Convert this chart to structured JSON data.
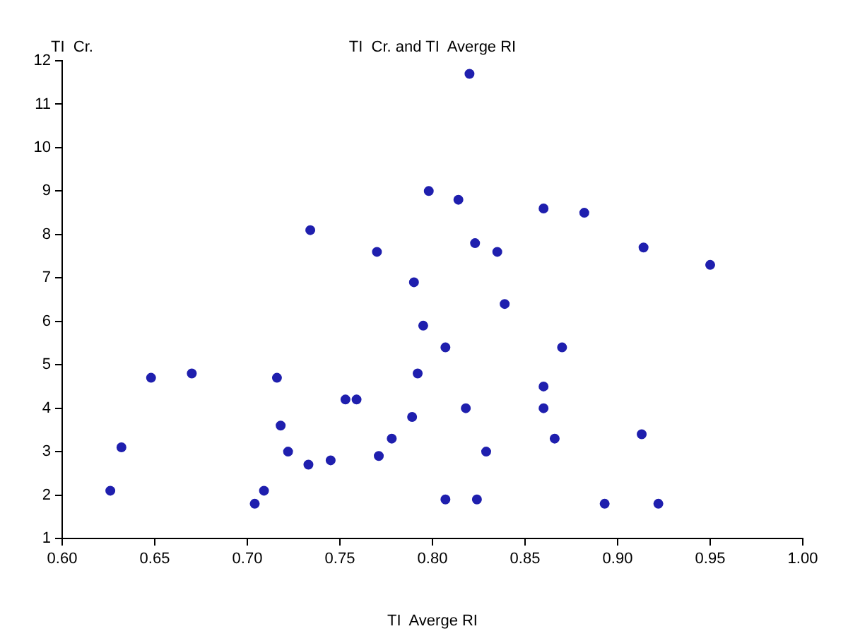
{
  "chart_data": {
    "type": "scatter",
    "title": "TI  Cr. and TI  Averge RI",
    "xlabel": "TI  Averge RI",
    "ylabel": "TI  Cr.",
    "marker": "circle",
    "grid": false,
    "legend": false,
    "xlim": [
      0.6,
      1.0
    ],
    "xticks": [
      {
        "value": 0.6,
        "label": "0.60"
      },
      {
        "value": 0.65,
        "label": "0.65"
      },
      {
        "value": 0.7,
        "label": "0.70"
      },
      {
        "value": 0.75,
        "label": "0.75"
      },
      {
        "value": 0.8,
        "label": "0.80"
      },
      {
        "value": 0.85,
        "label": "0.85"
      },
      {
        "value": 0.9,
        "label": "0.90"
      },
      {
        "value": 0.95,
        "label": "0.95"
      },
      {
        "value": 1.0,
        "label": "1.00"
      }
    ],
    "ylim": [
      1,
      12
    ],
    "yticks": [
      1,
      2,
      3,
      4,
      5,
      6,
      7,
      8,
      9,
      10,
      11,
      12
    ],
    "series": [
      {
        "color": "#1f1fae",
        "x": [
          0.626,
          0.632,
          0.648,
          0.67,
          0.734,
          0.77,
          0.79,
          0.795,
          0.792,
          0.716,
          0.753,
          0.759,
          0.789,
          0.718,
          0.778,
          0.722,
          0.771,
          0.745,
          0.733,
          0.709,
          0.704,
          0.82,
          0.798,
          0.814,
          0.86,
          0.882,
          0.823,
          0.835,
          0.914,
          0.95,
          0.839,
          0.807,
          0.87,
          0.86,
          0.818,
          0.86,
          0.866,
          0.913,
          0.829,
          0.807,
          0.824,
          0.893,
          0.922
        ],
        "values": [
          2.1,
          3.1,
          4.7,
          4.8,
          8.1,
          7.6,
          6.9,
          5.9,
          4.8,
          4.7,
          4.2,
          4.2,
          3.8,
          3.6,
          3.3,
          3.0,
          2.9,
          2.8,
          2.7,
          2.1,
          1.8,
          11.7,
          9.0,
          8.8,
          8.6,
          8.5,
          7.8,
          7.6,
          7.7,
          7.3,
          6.4,
          5.4,
          5.4,
          4.5,
          4.0,
          4.0,
          3.3,
          3.4,
          3.0,
          1.9,
          1.9,
          1.8,
          1.8
        ]
      }
    ]
  }
}
